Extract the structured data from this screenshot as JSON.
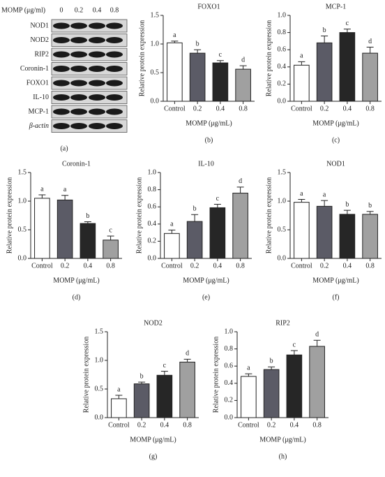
{
  "blot": {
    "header": "MOMP (μg/ml)",
    "doses": [
      "0",
      "0.2",
      "0.4",
      "0.8"
    ],
    "rows": [
      "NOD1",
      "NOD2",
      "RIP2",
      "Coronin-1",
      "FOXO1",
      "IL-10",
      "MCP-1",
      "β-actin"
    ],
    "label": "(a)"
  },
  "chart_data": [
    {
      "type": "bar",
      "title": "FOXO1",
      "y_label": "Relative protein expression",
      "x_label": "MOMP (μg/mL)",
      "label": "(b)",
      "categories": [
        "Control",
        "0.2",
        "0.4",
        "0.8"
      ],
      "values": [
        1.02,
        0.84,
        0.67,
        0.56
      ],
      "errors": [
        0.03,
        0.06,
        0.04,
        0.06
      ],
      "annotations": [
        "a",
        "b",
        "c",
        "d"
      ],
      "colors": [
        "#ffffff",
        "#5b5b66",
        "#262626",
        "#a0a0a0"
      ],
      "ylim": [
        0,
        1.5
      ],
      "yticks": [
        {
          "value": 0,
          "label": "0.0"
        },
        0.5,
        {
          "value": 1,
          "label": "1.0"
        },
        1.5
      ]
    },
    {
      "type": "bar",
      "title": "MCP-1",
      "y_label": "Relative protein expression",
      "x_label": "MOMP (μg/mL)",
      "label": "(c)",
      "categories": [
        "Control",
        "0.2",
        "0.4",
        "0.8"
      ],
      "values": [
        0.42,
        0.68,
        0.8,
        0.56
      ],
      "errors": [
        0.04,
        0.08,
        0.04,
        0.07
      ],
      "annotations": [
        "a",
        "b",
        "c",
        "d"
      ],
      "colors": [
        "#ffffff",
        "#5b5b66",
        "#262626",
        "#a0a0a0"
      ],
      "ylim": [
        0,
        1
      ],
      "yticks": [
        {
          "value": 0,
          "label": "0.0"
        },
        0.2,
        0.4,
        0.6,
        0.8,
        {
          "value": 1,
          "label": "1.0"
        }
      ]
    },
    {
      "type": "bar",
      "title": "Coronin-1",
      "y_label": "Relative protein expression",
      "x_label": "MOMP (μg/mL)",
      "label": "(d)",
      "categories": [
        "Control",
        "0.2",
        "0.4",
        "0.8"
      ],
      "values": [
        1.05,
        1.02,
        0.61,
        0.32
      ],
      "errors": [
        0.06,
        0.08,
        0.03,
        0.07
      ],
      "annotations": [
        "a",
        "a",
        "b",
        "c"
      ],
      "colors": [
        "#ffffff",
        "#5b5b66",
        "#262626",
        "#a0a0a0"
      ],
      "ylim": [
        0,
        1.5
      ],
      "yticks": [
        {
          "value": 0,
          "label": "0.0"
        },
        0.5,
        {
          "value": 1,
          "label": "1.0"
        },
        1.5
      ]
    },
    {
      "type": "bar",
      "title": "IL-10",
      "y_label": "Relative protein expression",
      "x_label": "MOMP (μg/mL)",
      "label": "(e)",
      "categories": [
        "Control",
        "0.2",
        "0.4",
        "0.8"
      ],
      "values": [
        0.29,
        0.43,
        0.59,
        0.76
      ],
      "errors": [
        0.04,
        0.08,
        0.04,
        0.07
      ],
      "annotations": [
        "a",
        "b",
        "c",
        "d"
      ],
      "colors": [
        "#ffffff",
        "#5b5b66",
        "#262626",
        "#a0a0a0"
      ],
      "ylim": [
        0,
        1
      ],
      "yticks": [
        {
          "value": 0,
          "label": "0.0"
        },
        0.2,
        0.4,
        0.6,
        0.8,
        {
          "value": 1,
          "label": "1.0"
        }
      ]
    },
    {
      "type": "bar",
      "title": "NOD1",
      "y_label": "Relative protein expression",
      "x_label": "MOMP (μg/mL)",
      "label": "(f)",
      "categories": [
        "Control",
        "0.2",
        "0.4",
        "0.8"
      ],
      "values": [
        0.98,
        0.91,
        0.77,
        0.77
      ],
      "errors": [
        0.05,
        0.1,
        0.07,
        0.05
      ],
      "annotations": [
        "a",
        "a",
        "b",
        "b"
      ],
      "colors": [
        "#ffffff",
        "#5b5b66",
        "#262626",
        "#a0a0a0"
      ],
      "ylim": [
        0,
        1.5
      ],
      "yticks": [
        {
          "value": 0,
          "label": "0.0"
        },
        0.5,
        {
          "value": 1,
          "label": "1.0"
        },
        1.5
      ]
    },
    {
      "type": "bar",
      "title": "NOD2",
      "y_label": "Relative protein expression",
      "x_label": "MOMP (μg/mL)",
      "label": "(g)",
      "categories": [
        "Control",
        "0.2",
        "0.4",
        "0.8"
      ],
      "values": [
        0.33,
        0.59,
        0.74,
        0.97
      ],
      "errors": [
        0.06,
        0.03,
        0.07,
        0.05
      ],
      "annotations": [
        "a",
        "b",
        "c",
        "d"
      ],
      "colors": [
        "#ffffff",
        "#5b5b66",
        "#262626",
        "#a0a0a0"
      ],
      "ylim": [
        0,
        1.5
      ],
      "yticks": [
        {
          "value": 0,
          "label": "0.0"
        },
        0.5,
        {
          "value": 1,
          "label": "1.0"
        },
        1.5
      ]
    },
    {
      "type": "bar",
      "title": "RIP2",
      "y_label": "Relative protein expression",
      "x_label": "MOMP (μg/mL)",
      "label": "(h)",
      "categories": [
        "Control",
        "0.2",
        "0.4",
        "0.8"
      ],
      "values": [
        0.48,
        0.56,
        0.73,
        0.83
      ],
      "errors": [
        0.03,
        0.03,
        0.05,
        0.07
      ],
      "annotations": [
        "a",
        "b",
        "c",
        "d"
      ],
      "colors": [
        "#ffffff",
        "#5b5b66",
        "#262626",
        "#a0a0a0"
      ],
      "ylim": [
        0,
        1
      ],
      "yticks": [
        {
          "value": 0,
          "label": "0.0"
        },
        0.2,
        0.4,
        0.6,
        0.8,
        {
          "value": 1,
          "label": "1.0"
        }
      ]
    }
  ]
}
